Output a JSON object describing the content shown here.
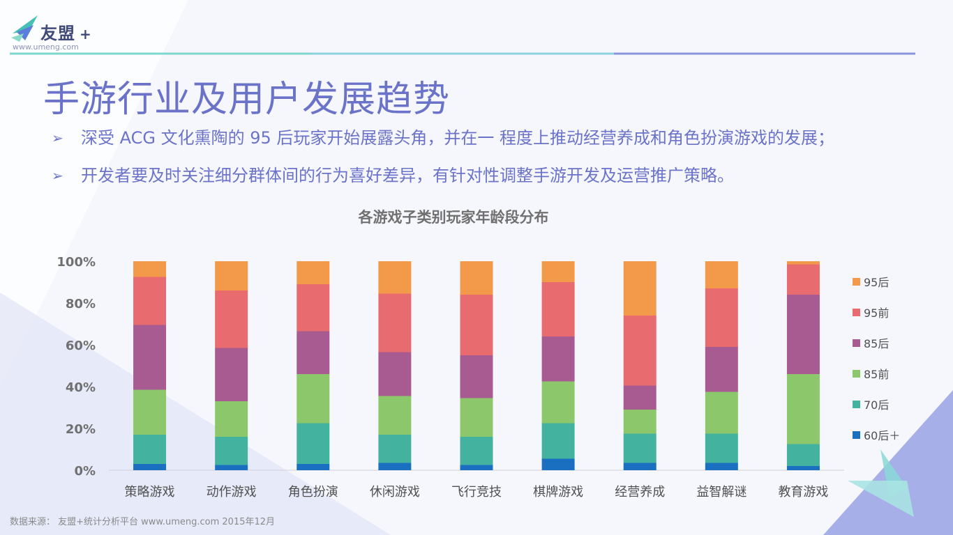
{
  "logo": {
    "text": "友盟",
    "plus": "+",
    "url": "www.umeng.com",
    "icon": "bird-logo-icon"
  },
  "title": "手游行业及用户发展趋势",
  "bullets": [
    {
      "icon": "arrow-bullet-icon",
      "glyph": "➢",
      "text": "深受 ACG 文化熏陶的 95 后玩家开始展露头角，并在一 程度上推动经营养成和角色扮演游戏的发展；"
    },
    {
      "icon": "arrow-bullet-icon",
      "glyph": "➢",
      "text": "开发者要及时关注细分群体间的行为喜好差异，有针对性调整手游开发及运营推广策略。"
    }
  ],
  "source": "数据来源： 友盟+统计分析平台 www.umeng.com 2015年12月",
  "chart_data": {
    "type": "bar",
    "stacked": true,
    "title": "各游戏子类别玩家年龄段分布",
    "categories": [
      "策略游戏",
      "动作游戏",
      "角色扮演",
      "休闲游戏",
      "飞行竞技",
      "棋牌游戏",
      "经营养成",
      "益智解谜",
      "教育游戏"
    ],
    "ylim": [
      0,
      100
    ],
    "yticks": [
      "0%",
      "20%",
      "40%",
      "60%",
      "80%",
      "100%"
    ],
    "ytick_values": [
      0,
      20,
      40,
      60,
      80,
      100
    ],
    "grid": false,
    "legend_position": "right",
    "series": [
      {
        "name": "60后＋",
        "color": "#1b6fc0",
        "values": [
          3,
          2.5,
          3,
          3.5,
          2.5,
          5.5,
          3.5,
          3.5,
          2
        ]
      },
      {
        "name": "70后",
        "color": "#43b3a0",
        "values": [
          14,
          13.5,
          19.5,
          13.5,
          13.5,
          17,
          14,
          14,
          10.5
        ]
      },
      {
        "name": "85前",
        "color": "#8cc86b",
        "values": [
          21.5,
          17,
          23.5,
          18.5,
          18.5,
          20,
          11.5,
          20,
          33.5
        ]
      },
      {
        "name": "85后",
        "color": "#a75b91",
        "values": [
          31,
          25.5,
          20.5,
          21,
          20.5,
          21.5,
          11.5,
          21.5,
          38
        ]
      },
      {
        "name": "95前",
        "color": "#e86b70",
        "values": [
          23,
          27.5,
          22.5,
          28,
          29,
          26,
          33.5,
          28,
          14.5
        ]
      },
      {
        "name": "95后",
        "color": "#f39a4a",
        "values": [
          7.5,
          14,
          11,
          15.5,
          16,
          10,
          26,
          13,
          1.5
        ]
      }
    ]
  }
}
